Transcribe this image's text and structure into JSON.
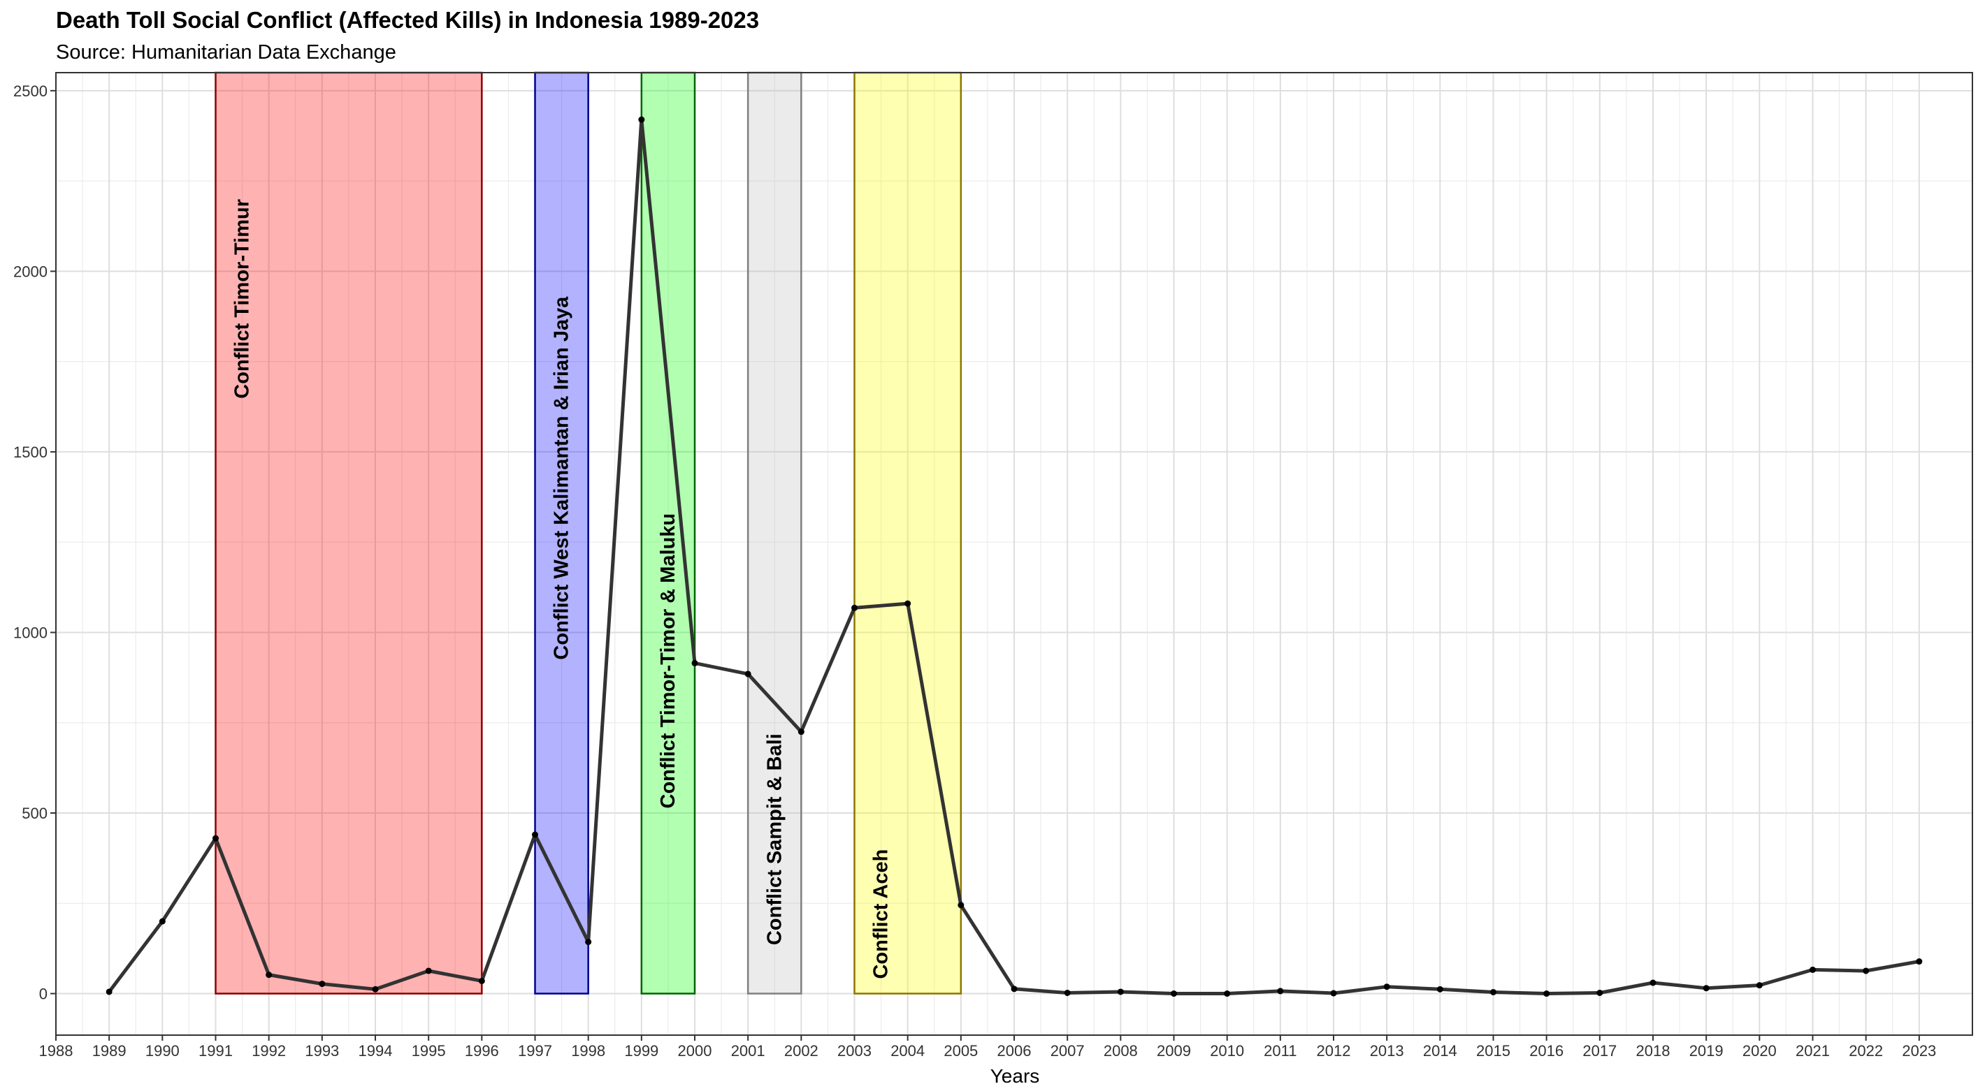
{
  "chart_data": {
    "type": "line",
    "title": "Death Toll Social Conflict (Affected Kills) in Indonesia 1989-2023",
    "subtitle": "Source: Humanitarian Data Exchange",
    "xlabel": "Years",
    "ylabel": "",
    "xlim": [
      1988,
      2024
    ],
    "ylim": [
      -115,
      2550
    ],
    "x_ticks": [
      1988,
      1989,
      1990,
      1991,
      1992,
      1993,
      1994,
      1995,
      1996,
      1997,
      1998,
      1999,
      2000,
      2001,
      2002,
      2003,
      2004,
      2005,
      2006,
      2007,
      2008,
      2009,
      2010,
      2011,
      2012,
      2013,
      2014,
      2015,
      2016,
      2017,
      2018,
      2019,
      2020,
      2021,
      2022,
      2023
    ],
    "y_ticks": [
      0,
      500,
      1000,
      1500,
      2000,
      2500
    ],
    "grid": true,
    "series": [
      {
        "color": "#333333",
        "x": [
          1989,
          1990,
          1991,
          1992,
          1993,
          1994,
          1995,
          1996,
          1997,
          1998,
          1999,
          2000,
          2001,
          2002,
          2003,
          2004,
          2005,
          2006,
          2007,
          2008,
          2009,
          2010,
          2011,
          2012,
          2013,
          2014,
          2015,
          2016,
          2017,
          2018,
          2019,
          2020,
          2021,
          2022,
          2023
        ],
        "values": [
          5,
          200,
          430,
          52,
          27,
          12,
          63,
          35,
          440,
          143,
          2420,
          915,
          885,
          725,
          1068,
          1080,
          245,
          13,
          2,
          5,
          0,
          0,
          7,
          1,
          19,
          12,
          4,
          0,
          2,
          30,
          15,
          23,
          66,
          63,
          89
        ]
      }
    ],
    "bands": [
      {
        "label": "Conflict Timor-Timur",
        "x_start": 1991,
        "x_end": 1996,
        "y_top": 2550,
        "label_y_top": 2200,
        "fill": "#ff0000",
        "stroke": "#8b0000"
      },
      {
        "label": "Conflict West Kalimantan & Irian Jaya",
        "x_start": 1997,
        "x_end": 1998,
        "y_top": 2550,
        "label_y_top": 1930,
        "fill": "#0000ff",
        "stroke": "#00008b"
      },
      {
        "label": "Conflict Timor-Timor & Maluku",
        "x_start": 1999,
        "x_end": 2000,
        "y_top": 2550,
        "label_y_top": 1330,
        "fill": "#00ff00",
        "stroke": "#006400"
      },
      {
        "label": "Conflict Sampit & Bali",
        "x_start": 2001,
        "x_end": 2002,
        "y_top": 2550,
        "label_y_top": 720,
        "fill": "#bebebe",
        "stroke": "#7f7f7f"
      },
      {
        "label": "Conflict Aceh",
        "x_start": 2003,
        "x_end": 2005,
        "y_top": 2550,
        "label_y_top": 400,
        "fill": "#ffff00",
        "stroke": "#8b7500"
      }
    ]
  }
}
